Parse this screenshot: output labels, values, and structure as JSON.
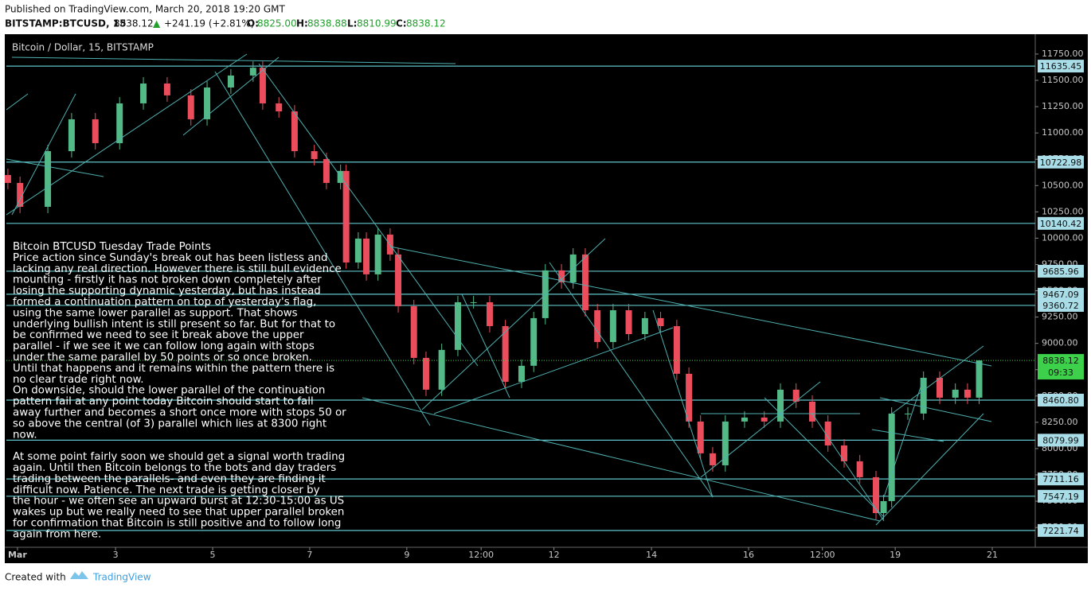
{
  "header": {
    "published": "Published on TradingView.com, March 20, 2018 19:20 GMT",
    "symbol": "BITSTAMP:BTCUSD, 15",
    "last": "8838.12",
    "arrow": "▲",
    "change": "+241.19 (+2.81%)",
    "o_label": "O:",
    "o": "8825.00",
    "h_label": "H:",
    "h": "8838.88",
    "l_label": "L:",
    "l": "8810.99",
    "c_label": "C:",
    "c": "8838.12"
  },
  "chart_data": {
    "type": "candlestick",
    "title": "Bitcoin / Dollar, 15, BITSTAMP",
    "up_color": "#53b987",
    "down_color": "#eb4d5c",
    "level_color": "#5fc4c9",
    "level_label_color": "#a9dde8",
    "last_color": "#3dd14b",
    "x": [
      3,
      27,
      82,
      129,
      176,
      224,
      271,
      318,
      365,
      397,
      444,
      488,
      507,
      539,
      570,
      609,
      633,
      661,
      672,
      696,
      712,
      735,
      759,
      775,
      806,
      830,
      861,
      893,
      924,
      956,
      987,
      1019,
      1043,
      1066,
      1098,
      1121,
      1145,
      1169,
      1200,
      1231,
      1263,
      1294,
      1326,
      1350,
      1373,
      1397,
      1422,
      1460,
      1499,
      1531,
      1562,
      1594,
      1625,
      1657,
      1688,
      1720,
      1735,
      1751,
      1783,
      1814,
      1846,
      1877,
      1901,
      1924
    ],
    "open": [
      10600,
      10525,
      10298,
      10827,
      11130,
      10903,
      11281,
      11470,
      11357,
      11130,
      11432,
      11546,
      11620,
      11281,
      11205,
      10827,
      10752,
      10525,
      10639,
      9769,
      9996,
      9656,
      10034,
      9845,
      9353,
      8862,
      8560,
      8938,
      9391,
      9391,
      9164,
      8635,
      8787,
      9240,
      9694,
      9580,
      9845,
      9315,
      9013,
      9315,
      9088,
      9240,
      9164,
      8711,
      8257,
      7955,
      7841,
      8257,
      8295,
      8257,
      8560,
      8446,
      8257,
      8030,
      7879,
      7728,
      7387,
      7501,
      8333,
      8333,
      8673,
      8484,
      8560,
      8484
    ],
    "high": [
      10660,
      10585,
      10887,
      11190,
      11190,
      11341,
      11530,
      11530,
      11417,
      11492,
      11606,
      11680,
      11680,
      11341,
      11265,
      10887,
      10812,
      10699,
      10699,
      10056,
      10056,
      10094,
      10094,
      9905,
      9413,
      8922,
      8998,
      9451,
      9451,
      9451,
      9224,
      8847,
      9300,
      9754,
      9754,
      9905,
      9905,
      9375,
      9375,
      9375,
      9300,
      9300,
      9224,
      8771,
      8317,
      8015,
      8317,
      8355,
      8355,
      8620,
      8620,
      8506,
      8317,
      8090,
      7939,
      7788,
      7561,
      8393,
      8393,
      8733,
      8733,
      8620,
      8620,
      8838.88
    ],
    "low": [
      10465,
      10238,
      10238,
      10767,
      10843,
      10843,
      11221,
      11297,
      11070,
      11070,
      11372,
      11486,
      11221,
      11145,
      10767,
      10692,
      10465,
      10465,
      9709,
      9709,
      9596,
      9596,
      9785,
      9293,
      8802,
      8500,
      8500,
      8878,
      9331,
      9104,
      8575,
      8575,
      8727,
      9180,
      9520,
      9520,
      9255,
      8953,
      8953,
      9028,
      9028,
      9104,
      8651,
      8197,
      7895,
      7781,
      7781,
      8197,
      8197,
      8197,
      8386,
      8197,
      7970,
      7819,
      7668,
      7327,
      7327,
      7441,
      8273,
      8273,
      8424,
      8424,
      8424,
      8424
    ],
    "close": [
      10525,
      10298,
      10827,
      11130,
      10903,
      11281,
      11470,
      11357,
      11130,
      11432,
      11546,
      11620,
      11281,
      11205,
      10827,
      10752,
      10525,
      10639,
      9769,
      9996,
      9656,
      10034,
      9845,
      9353,
      8862,
      8560,
      8938,
      9391,
      9391,
      9164,
      8635,
      8787,
      9240,
      9694,
      9580,
      9845,
      9315,
      9013,
      9315,
      9088,
      9240,
      9164,
      8711,
      8257,
      7955,
      7841,
      8257,
      8295,
      8257,
      8560,
      8446,
      8257,
      8030,
      7879,
      7728,
      7387,
      7501,
      8333,
      8333,
      8673,
      8484,
      8560,
      8484,
      8838.12
    ],
    "last_value_label": "8838.12",
    "countdown": "09:33",
    "levels": [
      11635.45,
      10722.98,
      10140.42,
      9685.96,
      9467.09,
      9360.72,
      8460.8,
      8079.99,
      7711.16,
      7547.19,
      7221.74
    ],
    "level_labels": [
      "11635.45",
      "10722.98",
      "10140.42",
      "9685.96",
      "9467.09",
      "9360.72",
      "8460.80",
      "8079.99",
      "7711.16",
      "7547.19",
      "7221.74"
    ],
    "xlim": [
      0,
      2035
    ],
    "xticks": [
      {
        "value": 22,
        "label": "Mar"
      },
      {
        "value": 216,
        "label": "3"
      },
      {
        "value": 408,
        "label": "5"
      },
      {
        "value": 600,
        "label": "7"
      },
      {
        "value": 792,
        "label": "9"
      },
      {
        "value": 939,
        "label": "12:00"
      },
      {
        "value": 1083,
        "label": "12"
      },
      {
        "value": 1276,
        "label": "14"
      },
      {
        "value": 1468,
        "label": "16"
      },
      {
        "value": 1614,
        "label": "12:00"
      },
      {
        "value": 1758,
        "label": "19"
      },
      {
        "value": 1950,
        "label": "21"
      }
    ],
    "ylim": [
      7062,
      11931
    ],
    "yticks": [
      {
        "value": 7250,
        "label": "7250.00"
      },
      {
        "value": 7500,
        "label": "7500.00"
      },
      {
        "value": 7750,
        "label": "7750.00"
      },
      {
        "value": 8000,
        "label": "8000.00"
      },
      {
        "value": 8250,
        "label": "8250.00"
      },
      {
        "value": 8500,
        "label": "8500.00"
      },
      {
        "value": 8750,
        "label": "8750.00"
      },
      {
        "value": 9000,
        "label": "9000.00"
      },
      {
        "value": 9250,
        "label": "9250.00"
      },
      {
        "value": 9500,
        "label": "9500.00"
      },
      {
        "value": 9750,
        "label": "9750.00"
      },
      {
        "value": 10000,
        "label": "10000.00"
      },
      {
        "value": 10250,
        "label": "10250.00"
      },
      {
        "value": 10500,
        "label": "10500.00"
      },
      {
        "value": 10750,
        "label": "10750.00"
      },
      {
        "value": 11000,
        "label": "11000.00"
      },
      {
        "value": 11250,
        "label": "11250.00"
      },
      {
        "value": 11500,
        "label": "11500.00"
      },
      {
        "value": 11750,
        "label": "11750.00"
      }
    ],
    "annotation": [
      [
        "Bitcoin  BTCUSD  Tuesday Trade Points",
        "Price action since Sunday's break out has been listless and",
        "lacking any real direction. However there is still bull evidence",
        "mounting - firstly it has not broken down completely after",
        "losing the supporting dynamic yesterday, but has instead",
        "formed a continuation pattern on top of yesterday's flag,",
        "using the same lower parallel as support. That shows",
        "underlying bullish intent is still present so far. But for that to",
        "be confirmed we need to see it break above the upper",
        "parallel - if we see it we can follow long again with stops",
        "under the same parallel by 50 points or so once broken.",
        "Until that happens and it remains within the pattern there is",
        "no clear trade right now.",
        "On downside, should the lower parallel of the continuation",
        "pattern fail at any point today Bitcoin should start to fall",
        "away further and becomes a short once more with stops 50 or",
        "so above the central (of 3) parallel which lies at 8300 right",
        "now."
      ],
      [
        "At some point fairly soon we should get a signal worth trading",
        "again. Until then Bitcoin belongs to the bots and day traders",
        "trading between the parallels- and even they are finding it",
        "difficult now. Patience. The next trade is getting closer by",
        "the hour - we often see an upward burst at 12:30-15:00 as US",
        "wakes up but we really need to see that upper parallel broken",
        "for confirmation that Bitcoin is still positive and to follow long",
        "again from here."
      ]
    ]
  },
  "footer": {
    "created": "Created with",
    "brand": "TradingView"
  }
}
